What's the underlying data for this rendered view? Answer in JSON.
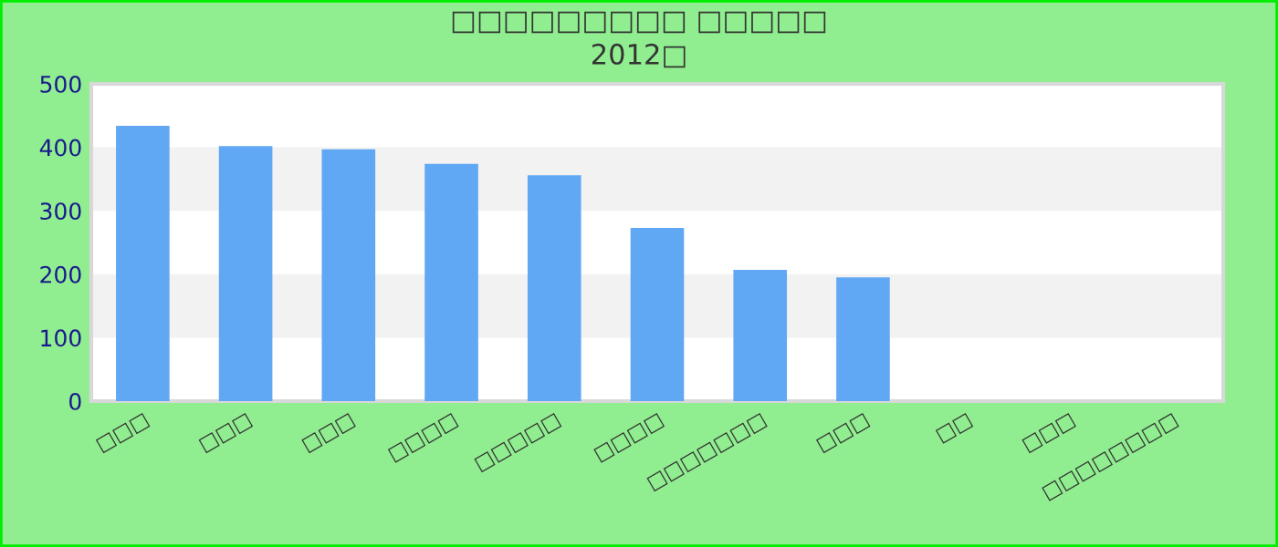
{
  "chart_data": {
    "type": "bar",
    "title": "□□□□□□□□□ □□□□□",
    "subtitle": "2012□",
    "categories": [
      "□□□",
      "□□□",
      "□□□",
      "□□□□",
      "□□□□□",
      "□□□□",
      "□□□□□□□",
      "□□□",
      "□□",
      "□□□",
      "□□□□□□□□"
    ],
    "values": [
      434,
      402,
      397,
      374,
      356,
      273,
      207,
      195,
      0,
      0,
      0
    ],
    "color": "#60a8f4",
    "ylim": [
      0,
      500
    ],
    "yticks": [
      0,
      100,
      200,
      300,
      400,
      500
    ],
    "bands": [
      {
        "axis": "y",
        "from": 100,
        "to": 200,
        "color": "#f2f2f2"
      },
      {
        "axis": "y",
        "from": 300,
        "to": 400,
        "color": "#f2f2f2"
      }
    ],
    "grid": false,
    "legend": false
  }
}
